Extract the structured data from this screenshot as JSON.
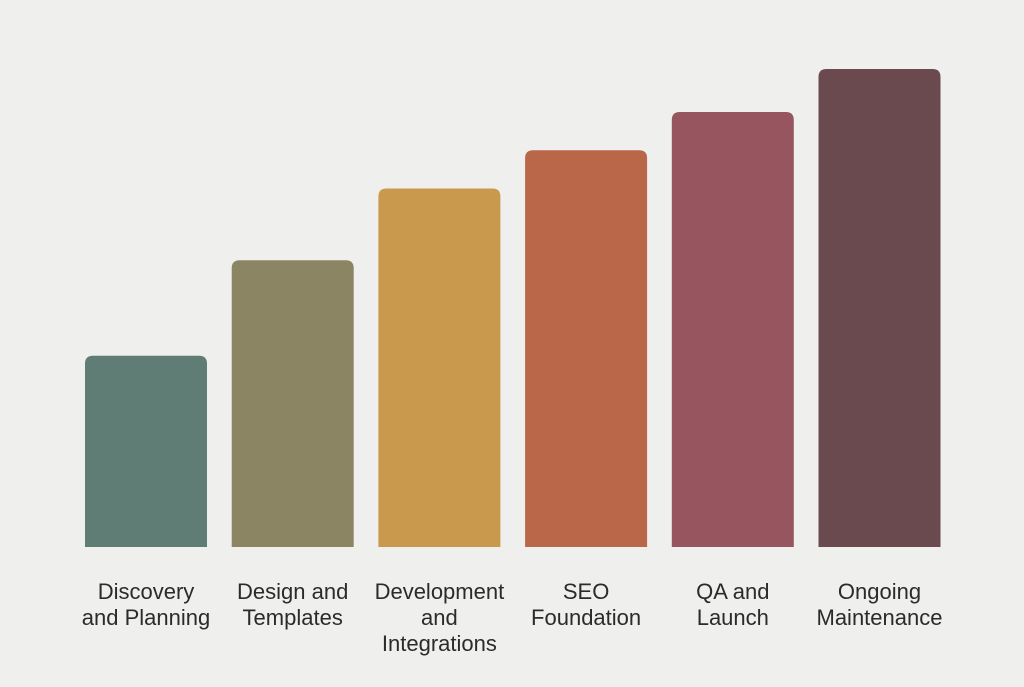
{
  "chart_data": {
    "type": "bar",
    "title": "",
    "xlabel": "",
    "ylabel": "",
    "grid": false,
    "ylim": [
      0,
      100
    ],
    "categories": [
      [
        "Discovery",
        "and Planning"
      ],
      [
        "Design and",
        "Templates"
      ],
      [
        "Development",
        "and",
        "Integrations"
      ],
      [
        "SEO",
        "Foundation"
      ],
      [
        "QA and",
        "Launch"
      ],
      [
        "Ongoing",
        "Maintenance"
      ]
    ],
    "values": [
      40,
      60,
      75,
      83,
      91,
      100
    ],
    "colors": [
      "#5f7d74",
      "#8c8563",
      "#c99a4e",
      "#b96748",
      "#975560",
      "#6b4a4f"
    ]
  }
}
